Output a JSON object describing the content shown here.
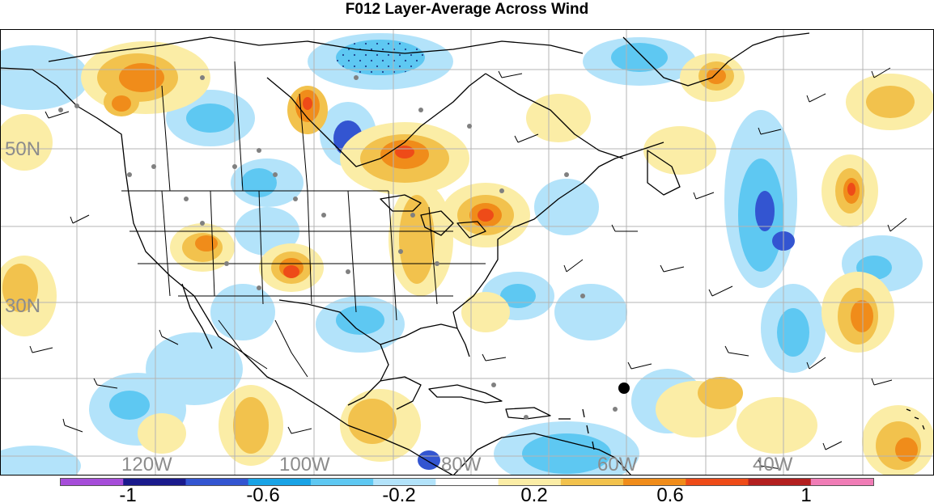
{
  "title": "F012 Layer-Average Across Wind",
  "map": {
    "lat_labels": [
      "50N",
      "30N"
    ],
    "lon_labels": [
      "120W",
      "100W",
      "80W",
      "60W",
      "40W"
    ],
    "label_color": "#8c8c8c",
    "land_border_color": "#000000",
    "grid_color": "#b4b4b4"
  },
  "colorbar": {
    "tick_labels": [
      "-1",
      "-0.6",
      "-0.2",
      "0.2",
      "0.6",
      "1"
    ],
    "colors": [
      "#a64dd9",
      "#1a1a8c",
      "#3355d1",
      "#19a3e6",
      "#5ec8f2",
      "#b3e3fa",
      "#ffffff",
      "#fbeda6",
      "#f2c24d",
      "#f08c1a",
      "#ee4b18",
      "#b31f1f",
      "#f07cb6"
    ]
  }
}
